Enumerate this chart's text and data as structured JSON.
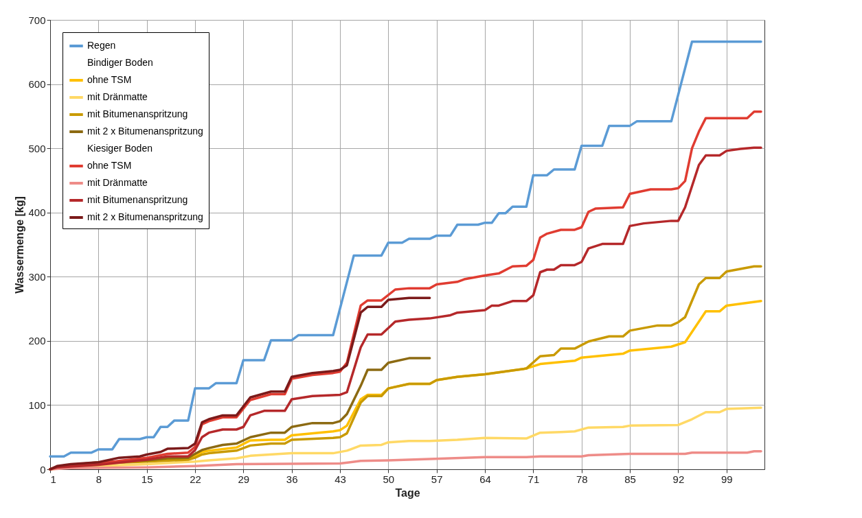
{
  "chart_data": {
    "type": "line",
    "xlabel": "Tage",
    "ylabel": "Wassermenge [kg]",
    "xlim": [
      1,
      104.5
    ],
    "xticks": [
      1,
      8,
      15,
      22,
      29,
      36,
      43,
      50,
      57,
      64,
      71,
      78,
      85,
      92,
      99
    ],
    "ylim": [
      0,
      700
    ],
    "yticks": [
      0,
      100,
      200,
      300,
      400,
      500,
      600,
      700
    ],
    "grid": true,
    "legend": "top left",
    "line_style": "solid",
    "annotations": [
      "Bindiger Boden",
      "Kiesiger Boden"
    ],
    "series": [
      {
        "name": "Regen",
        "color": "#5b9bd5",
        "x": [
          1,
          3,
          4,
          7,
          8,
          10,
          11,
          14,
          15,
          16,
          17,
          18,
          19,
          21,
          22,
          24,
          25,
          28,
          29,
          32,
          33,
          36,
          37,
          42,
          45,
          49,
          50,
          52,
          53,
          56,
          57,
          59,
          60,
          63,
          64,
          65,
          66,
          67,
          68,
          70,
          71,
          73,
          74,
          77,
          78,
          81,
          82,
          85,
          86,
          91,
          94,
          104
        ],
        "values": [
          20,
          20,
          26,
          26,
          31,
          31,
          47,
          47,
          50,
          50,
          66,
          66,
          76,
          76,
          126,
          126,
          134,
          134,
          170,
          170,
          201,
          201,
          209,
          209,
          333,
          333,
          353,
          353,
          359,
          359,
          364,
          364,
          381,
          381,
          384,
          384,
          399,
          399,
          409,
          409,
          458,
          458,
          467,
          467,
          504,
          504,
          535,
          535,
          542,
          542,
          666,
          666
        ]
      },
      {
        "name": "ohne TSM",
        "color": "#ffc000",
        "x": [
          1,
          3,
          8,
          15,
          18,
          21,
          22,
          23,
          24,
          28,
          30,
          33,
          35,
          36,
          42,
          43,
          44,
          46,
          47,
          49,
          50,
          53,
          56,
          57,
          60,
          64,
          70,
          72,
          77,
          78,
          84,
          85,
          91,
          93,
          96,
          98,
          99,
          104
        ],
        "values": [
          0,
          5,
          10,
          13,
          16,
          17,
          20,
          27,
          29,
          34,
          45,
          46,
          46,
          53,
          59,
          61,
          68,
          109,
          116,
          116,
          126,
          133,
          133,
          139,
          144,
          148,
          157,
          164,
          169,
          174,
          180,
          185,
          191,
          198,
          246,
          246,
          255,
          262
        ]
      },
      {
        "name": "mit Dränmatte",
        "color": "#ffd966",
        "x": [
          1,
          4,
          8,
          15,
          22,
          24,
          28,
          30,
          36,
          42,
          44,
          46,
          49,
          50,
          53,
          56,
          60,
          64,
          70,
          72,
          75,
          77,
          79,
          84,
          85,
          92,
          94,
          96,
          98,
          99,
          104
        ],
        "values": [
          0,
          3,
          5,
          8,
          12,
          14,
          17,
          21,
          25,
          25,
          29,
          37,
          38,
          42,
          44,
          44,
          46,
          49,
          48,
          57,
          58,
          59,
          65,
          66,
          68,
          69,
          78,
          89,
          89,
          94,
          96
        ]
      },
      {
        "name": "mit Bitumenanspritzung",
        "color": "#c99a00",
        "x": [
          1,
          3,
          8,
          15,
          21,
          22,
          23,
          24,
          28,
          30,
          33,
          35,
          36,
          42,
          43,
          44,
          46,
          47,
          49,
          50,
          53,
          56,
          57,
          60,
          64,
          70,
          72,
          74,
          75,
          77,
          79,
          82,
          84,
          85,
          89,
          91,
          92,
          93,
          95,
          96,
          98,
          99,
          103,
          104
        ],
        "values": [
          0,
          4,
          9,
          12,
          15,
          18,
          23,
          25,
          29,
          37,
          40,
          40,
          46,
          49,
          50,
          56,
          104,
          114,
          114,
          126,
          133,
          133,
          139,
          144,
          148,
          157,
          176,
          178,
          188,
          188,
          199,
          207,
          207,
          216,
          224,
          224,
          229,
          237,
          288,
          298,
          298,
          308,
          316,
          316
        ]
      },
      {
        "name": "mit 2 x Bitumenanspritzung",
        "color": "#8c6a12",
        "x": [
          1,
          3,
          8,
          15,
          18,
          21,
          22,
          23,
          24,
          26,
          28,
          30,
          33,
          35,
          36,
          39,
          42,
          43,
          44,
          46,
          47,
          49,
          50,
          53,
          56
        ],
        "values": [
          0,
          6,
          11,
          14,
          17,
          18,
          24,
          30,
          33,
          38,
          40,
          50,
          57,
          57,
          66,
          72,
          72,
          75,
          86,
          130,
          155,
          155,
          166,
          173,
          173
        ]
      },
      {
        "name": "ohne TSM",
        "color": "#e03c31",
        "x": [
          1,
          2,
          8,
          11,
          15,
          18,
          21,
          22,
          23,
          24,
          26,
          28,
          30,
          33,
          35,
          36,
          39,
          42,
          43,
          44,
          46,
          47,
          49,
          51,
          53,
          56,
          57,
          60,
          61,
          64,
          66,
          68,
          70,
          71,
          72,
          73,
          75,
          77,
          78,
          79,
          80,
          84,
          85,
          88,
          91,
          92,
          93,
          94,
          95,
          96,
          102,
          103,
          104
        ],
        "values": [
          0,
          4,
          9,
          13,
          18,
          24,
          26,
          35,
          70,
          75,
          81,
          81,
          108,
          117,
          117,
          141,
          147,
          150,
          152,
          166,
          255,
          263,
          263,
          280,
          282,
          282,
          288,
          292,
          296,
          302,
          305,
          316,
          317,
          326,
          361,
          367,
          373,
          373,
          377,
          401,
          406,
          408,
          429,
          436,
          436,
          438,
          449,
          500,
          526,
          547,
          547,
          557,
          557
        ]
      },
      {
        "name": "mit Dränmatte",
        "color": "#ee8c88",
        "x": [
          1,
          4,
          15,
          22,
          28,
          43,
          46,
          50,
          56,
          64,
          70,
          72,
          78,
          79,
          85,
          93,
          94,
          102,
          103,
          104
        ],
        "values": [
          0,
          2,
          3,
          5,
          8,
          9,
          13,
          14,
          16,
          19,
          19,
          20,
          20,
          22,
          24,
          24,
          26,
          26,
          28,
          28
        ]
      },
      {
        "name": "mit Bitumenanspritzung",
        "color": "#b5282a",
        "x": [
          1,
          2,
          8,
          15,
          18,
          21,
          22,
          23,
          24,
          26,
          28,
          29,
          30,
          32,
          35,
          36,
          39,
          43,
          44,
          46,
          47,
          49,
          51,
          53,
          56,
          59,
          60,
          64,
          65,
          66,
          68,
          70,
          71,
          72,
          73,
          74,
          75,
          77,
          78,
          79,
          81,
          84,
          85,
          87,
          91,
          92,
          93,
          95,
          96,
          98,
          99,
          101,
          103,
          104
        ],
        "values": [
          0,
          3,
          7,
          15,
          20,
          20,
          30,
          50,
          57,
          62,
          62,
          66,
          84,
          91,
          91,
          109,
          114,
          116,
          120,
          190,
          210,
          210,
          230,
          233,
          235,
          240,
          244,
          248,
          255,
          255,
          262,
          262,
          271,
          307,
          311,
          311,
          318,
          318,
          323,
          344,
          351,
          351,
          379,
          383,
          387,
          387,
          408,
          474,
          489,
          489,
          496,
          499,
          501,
          501
        ]
      },
      {
        "name": "mit 2 x Bitumenanspritzung",
        "color": "#7b1a1a",
        "x": [
          1,
          2,
          4,
          8,
          11,
          14,
          15,
          17,
          18,
          21,
          22,
          23,
          24,
          26,
          28,
          30,
          33,
          35,
          36,
          39,
          42,
          43,
          44,
          46,
          47,
          49,
          50,
          53,
          56
        ],
        "values": [
          0,
          5,
          8,
          11,
          18,
          20,
          23,
          27,
          32,
          33,
          40,
          73,
          78,
          84,
          84,
          112,
          121,
          121,
          144,
          150,
          153,
          155,
          162,
          244,
          253,
          253,
          264,
          267,
          267
        ]
      }
    ]
  }
}
